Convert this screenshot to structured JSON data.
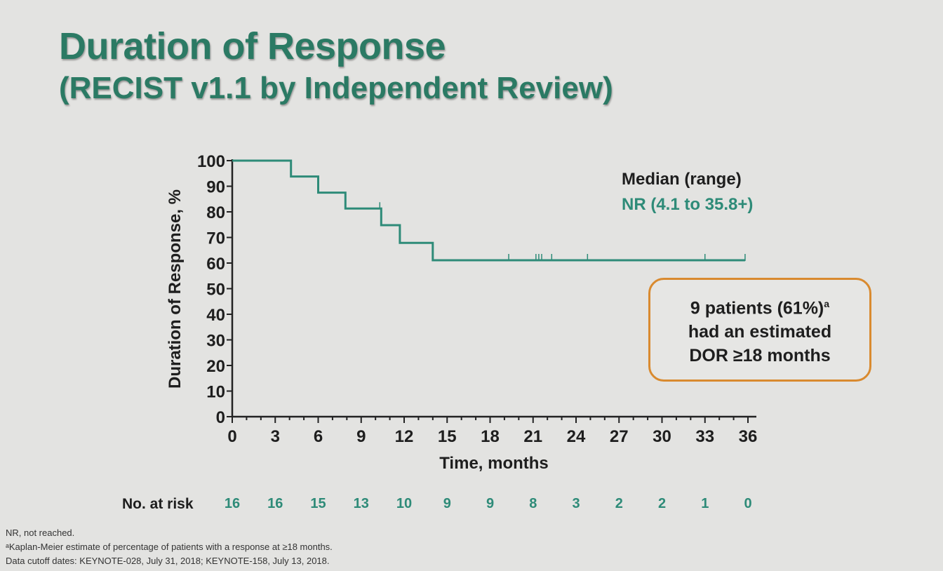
{
  "slide": {
    "title": "Duration of Response",
    "subtitle": "(RECIST v1.1 by Independent Review)"
  },
  "legend": {
    "heading": "Median (range)",
    "value": "NR (4.1 to 35.8+)"
  },
  "callout": {
    "line1": "9 patients (61%)",
    "line1_sup": "a",
    "line2": "had an estimated",
    "line3": "DOR ≥18 months"
  },
  "risk_table": {
    "label": "No. at risk",
    "values": [
      "16",
      "16",
      "15",
      "13",
      "10",
      "9",
      "9",
      "8",
      "3",
      "2",
      "2",
      "1",
      "0"
    ]
  },
  "footnotes": {
    "line1": "NR, not reached.",
    "line2": "ᵃKaplan-Meier estimate of percentage of patients with a response at ≥18 months.",
    "line3": "Data cutoff dates: KEYNOTE-028, July 31, 2018; KEYNOTE-158, July 13, 2018."
  },
  "colors": {
    "title": "#2b7a64",
    "curve": "#2e8b78",
    "callout_border": "#d98a2f"
  },
  "chart_data": {
    "type": "line",
    "subtype": "kaplan-meier-step",
    "title": "",
    "xlabel": "Time, months",
    "ylabel": "Duration of  Response, %",
    "xlim": [
      0,
      36
    ],
    "ylim": [
      0,
      100
    ],
    "xticks": [
      0,
      3,
      6,
      9,
      12,
      15,
      18,
      21,
      24,
      27,
      30,
      33,
      36
    ],
    "yticks": [
      0,
      10,
      20,
      30,
      40,
      50,
      60,
      70,
      80,
      90,
      100
    ],
    "grid": false,
    "series": [
      {
        "name": "",
        "color": "#2e8b78",
        "step_points": [
          [
            0,
            100
          ],
          [
            4.1,
            100
          ],
          [
            4.1,
            93.8
          ],
          [
            6.0,
            93.8
          ],
          [
            6.0,
            87.5
          ],
          [
            7.9,
            87.5
          ],
          [
            7.9,
            81.3
          ],
          [
            10.4,
            81.3
          ],
          [
            10.4,
            74.8
          ],
          [
            11.7,
            74.8
          ],
          [
            11.7,
            67.9
          ],
          [
            14.0,
            67.9
          ],
          [
            14.0,
            61.1
          ],
          [
            35.8,
            61.1
          ]
        ],
        "censored_x": [
          10.3,
          19.3,
          21.2,
          21.4,
          21.6,
          22.3,
          24.8,
          33.0,
          35.8
        ]
      }
    ]
  }
}
